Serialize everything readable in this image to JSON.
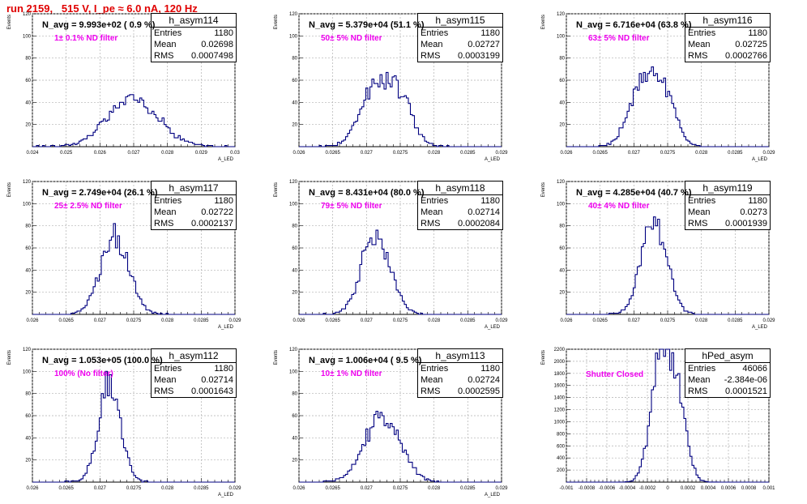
{
  "title": "run 2159,   515 V, I_pe ≈ 6.0 nA, 120 Hz",
  "colors": {
    "histogram": "#000080",
    "title": "#e00000",
    "annotation": "#ee00ee",
    "grid": "#b0b0b0"
  },
  "chart_data": [
    {
      "type": "bar",
      "hist_name": "h_asym114",
      "navg": "N_avg = 9.993e+02 ( 0.9 %)",
      "filter": "1± 0.1% ND filter",
      "entries": "1180",
      "mean": "0.02698",
      "rms": "0.0007498",
      "xlim": [
        0.024,
        0.03
      ],
      "ylim": [
        0,
        120
      ],
      "xticks": [
        "0.024",
        "0.025",
        "0.026",
        "0.027",
        "0.028",
        "0.029",
        "0.03"
      ],
      "yticks": [
        "20",
        "40",
        "60",
        "80",
        "100",
        "120"
      ],
      "ylabel": "Events",
      "xlabel": "A_LED",
      "mu": 0.02698,
      "sigma": 0.00075,
      "peak": 44,
      "shape": "single"
    },
    {
      "type": "bar",
      "hist_name": "h_asym115",
      "navg": "N_avg = 5.379e+04 (51.1 %)",
      "filter": "50± 5% ND filter",
      "entries": "1180",
      "mean": "0.02727",
      "rms": "0.0003199",
      "xlim": [
        0.026,
        0.029
      ],
      "ylim": [
        0,
        120
      ],
      "xticks": [
        "0.026",
        "0.0265",
        "0.027",
        "0.0275",
        "0.028",
        "0.0285",
        "0.029"
      ],
      "yticks": [
        "20",
        "40",
        "60",
        "80",
        "100",
        "120"
      ],
      "ylabel": "Events",
      "xlabel": "A_LED",
      "mu": 0.02727,
      "sigma": 0.00032,
      "peak": 55,
      "shape": "double"
    },
    {
      "type": "bar",
      "hist_name": "h_asym116",
      "navg": "N_avg = 6.716e+04 (63.8 %)",
      "filter": "63± 5% ND filter",
      "entries": "1180",
      "mean": "0.02725",
      "rms": "0.0002766",
      "xlim": [
        0.026,
        0.029
      ],
      "ylim": [
        0,
        120
      ],
      "xticks": [
        "0.026",
        "0.0265",
        "0.027",
        "0.0275",
        "0.028",
        "0.0285",
        "0.029"
      ],
      "yticks": [
        "20",
        "40",
        "60",
        "80",
        "100",
        "120"
      ],
      "ylabel": "Events",
      "xlabel": "A_LED",
      "mu": 0.02725,
      "sigma": 0.00028,
      "peak": 62,
      "shape": "double"
    },
    {
      "type": "bar",
      "hist_name": "h_asym117",
      "navg": "N_avg = 2.749e+04 (26.1 %)",
      "filter": "25± 2.5% ND filter",
      "entries": "1180",
      "mean": "0.02722",
      "rms": "0.0002137",
      "xlim": [
        0.026,
        0.029
      ],
      "ylim": [
        0,
        120
      ],
      "xticks": [
        "0.026",
        "0.0265",
        "0.027",
        "0.0275",
        "0.028",
        "0.0285",
        "0.029"
      ],
      "yticks": [
        "20",
        "40",
        "60",
        "80",
        "100",
        "120"
      ],
      "ylabel": "Events",
      "xlabel": "A_LED",
      "mu": 0.02722,
      "sigma": 0.00021,
      "peak": 70,
      "shape": "single"
    },
    {
      "type": "bar",
      "hist_name": "h_asym118",
      "navg": "N_avg = 8.431e+04 (80.0 %)",
      "filter": "79± 5% ND filter",
      "entries": "1180",
      "mean": "0.02714",
      "rms": "0.0002084",
      "xlim": [
        0.026,
        0.029
      ],
      "ylim": [
        0,
        120
      ],
      "xticks": [
        "0.026",
        "0.0265",
        "0.027",
        "0.0275",
        "0.028",
        "0.0285",
        "0.029"
      ],
      "yticks": [
        "20",
        "40",
        "60",
        "80",
        "100",
        "120"
      ],
      "ylabel": "Events",
      "xlabel": "A_LED",
      "mu": 0.02714,
      "sigma": 0.00021,
      "peak": 73,
      "shape": "single"
    },
    {
      "type": "bar",
      "hist_name": "h_asym119",
      "navg": "N_avg = 4.285e+04 (40.7 %)",
      "filter": "40± 4% ND filter",
      "entries": "1180",
      "mean": "0.0273",
      "rms": "0.0001939",
      "xlim": [
        0.026,
        0.029
      ],
      "ylim": [
        0,
        120
      ],
      "xticks": [
        "0.026",
        "0.0265",
        "0.027",
        "0.0275",
        "0.028",
        "0.0285",
        "0.029"
      ],
      "yticks": [
        "20",
        "40",
        "60",
        "80",
        "100",
        "120"
      ],
      "ylabel": "Events",
      "xlabel": "A_LED",
      "mu": 0.0273,
      "sigma": 0.00019,
      "peak": 82,
      "shape": "single"
    },
    {
      "type": "bar",
      "hist_name": "h_asym112",
      "navg": "N_avg = 1.053e+05 (100.0 %)",
      "filter": "100% (No filter)",
      "entries": "1180",
      "mean": "0.02714",
      "rms": "0.0001643",
      "xlim": [
        0.026,
        0.029
      ],
      "ylim": [
        0,
        120
      ],
      "xticks": [
        "0.026",
        "0.0265",
        "0.027",
        "0.0275",
        "0.028",
        "0.0285",
        "0.029"
      ],
      "yticks": [
        "20",
        "40",
        "60",
        "80",
        "100",
        "120"
      ],
      "ylabel": "Events",
      "xlabel": "A_LED",
      "mu": 0.02714,
      "sigma": 0.00016,
      "peak": 90,
      "shape": "single"
    },
    {
      "type": "bar",
      "hist_name": "h_asym113",
      "navg": "N_avg = 1.006e+04 ( 9.5 %)",
      "filter": "10± 1% ND filter",
      "entries": "1180",
      "mean": "0.02724",
      "rms": "0.0002595",
      "xlim": [
        0.026,
        0.029
      ],
      "ylim": [
        0,
        120
      ],
      "xticks": [
        "0.026",
        "0.0265",
        "0.027",
        "0.0275",
        "0.028",
        "0.0285",
        "0.029"
      ],
      "yticks": [
        "20",
        "40",
        "60",
        "80",
        "100",
        "120"
      ],
      "ylabel": "Events",
      "xlabel": "A_LED",
      "mu": 0.02724,
      "sigma": 0.00026,
      "peak": 60,
      "shape": "single"
    },
    {
      "type": "bar",
      "hist_name": "hPed_asym",
      "navg": "",
      "filter": "Shutter Closed",
      "entries": "46066",
      "mean": "-2.384e-06",
      "rms": "0.0001521",
      "xlim": [
        -0.001,
        0.001
      ],
      "ylim": [
        0,
        2400
      ],
      "xticks": [
        "-0.001",
        "-0.0008",
        "-0.0006",
        "-0.0004",
        "-0.0002",
        "0",
        "0.0002",
        "0.0004",
        "0.0006",
        "0.0008",
        "0.001"
      ],
      "yticks": [
        "200",
        "400",
        "600",
        "800",
        "1000",
        "1200",
        "1400",
        "1600",
        "1800",
        "2000",
        "2200"
      ],
      "ylabel": "Events",
      "xlabel": "",
      "mu": -2e-06,
      "sigma": 0.000152,
      "peak": 2150,
      "shape": "ped"
    }
  ]
}
